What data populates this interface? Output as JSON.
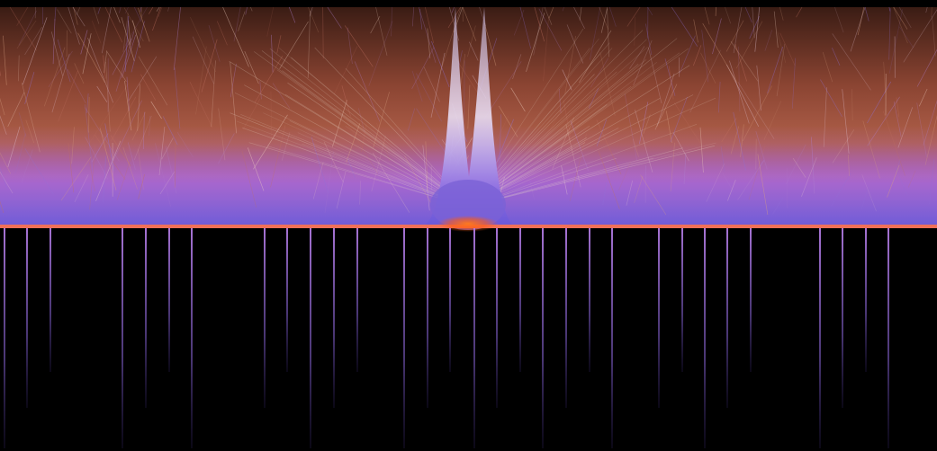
{
  "image": {
    "palette": {
      "background": "#000000",
      "upper_warm": "#b0503a",
      "upper_dark": "#3a1c14",
      "mid_violet": "#a45cc8",
      "mid_blue_violet": "#7a62d6",
      "peak_light": "#e8dcf2",
      "horizon_line": "#f07058",
      "horizon_glow": "#ff7a1e",
      "lines_lower": "#9a70d8"
    }
  }
}
